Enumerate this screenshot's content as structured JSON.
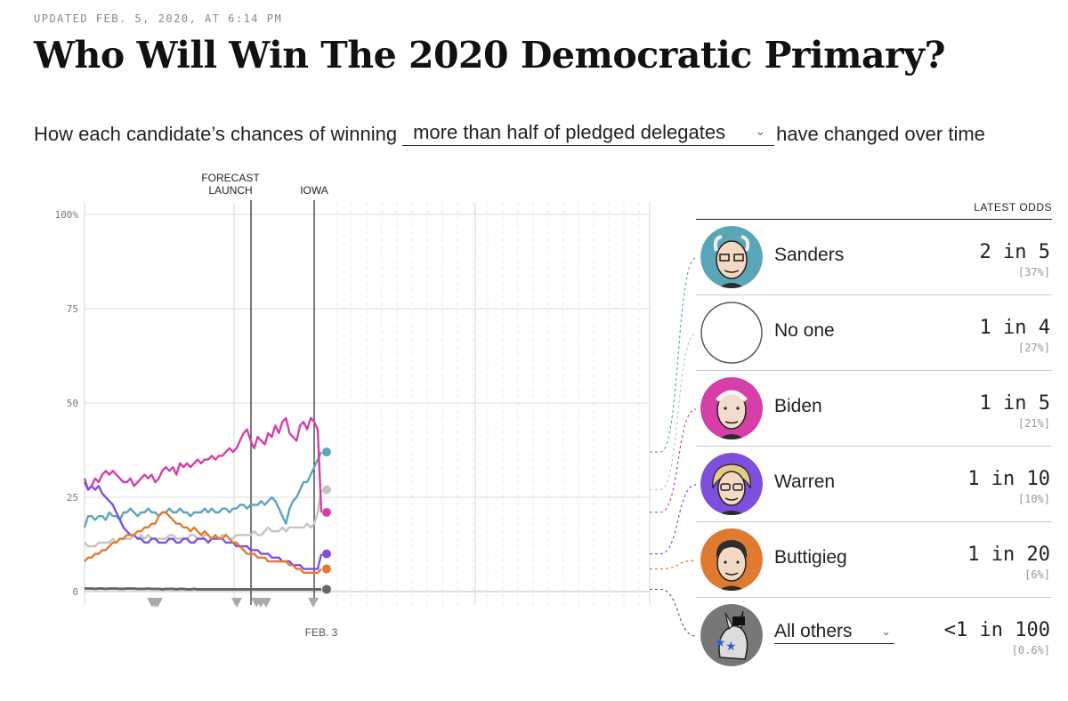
{
  "header": {
    "updated": "UPDATED FEB. 5, 2020, AT 6:14 PM",
    "title": "Who Will Win The 2020 Democratic Primary?",
    "subtitle_before": "How each candidate’s chances of winning",
    "metric_selected": "more than half of pledged delegates",
    "subtitle_after": "have changed over time"
  },
  "odds_panel": {
    "header": "LATEST ODDS",
    "candidates": [
      {
        "name": "Sanders",
        "odds": "2 in 5",
        "pct": "[37%]",
        "color": "#5aa6b8",
        "icon": "sanders-portrait-icon"
      },
      {
        "name": "No one",
        "odds": "1 in 4",
        "pct": "[27%]",
        "color": "#bdbdbd",
        "icon": "empty-circle-icon"
      },
      {
        "name": "Biden",
        "odds": "1 in 5",
        "pct": "[21%]",
        "color": "#d63ea8",
        "icon": "biden-portrait-icon"
      },
      {
        "name": "Warren",
        "odds": "1 in 10",
        "pct": "[10%]",
        "color": "#7e4fdc",
        "icon": "warren-portrait-icon"
      },
      {
        "name": "Buttigieg",
        "odds": "1 in 20",
        "pct": "[6%]",
        "color": "#e07a31",
        "icon": "buttigieg-portrait-icon"
      },
      {
        "name": "All others",
        "odds": "<1 in 100",
        "pct": "[0.6%]",
        "color": "#666666",
        "icon": "donkey-icon"
      }
    ]
  },
  "chart_data": {
    "type": "line",
    "title": "",
    "xlabel": "",
    "ylabel": "",
    "ylim": [
      0,
      100
    ],
    "yticks": [
      0,
      25,
      50,
      75,
      100
    ],
    "ytick_labels": [
      "0",
      "25",
      "50",
      "75",
      "100%"
    ],
    "x_label_text": "FEB. 3",
    "markers": [
      {
        "label_lines": [
          "FORECAST",
          "LAUNCH"
        ],
        "x_index": 47
      },
      {
        "label_lines": [
          "IOWA"
        ],
        "x_index": 65
      }
    ],
    "series": [
      {
        "name": "Sanders",
        "color": "#5aa6b8",
        "values": [
          17,
          20,
          20,
          19,
          20,
          20,
          19,
          21,
          20,
          20,
          19,
          21,
          21,
          22,
          21,
          20,
          21,
          21,
          22,
          21,
          21,
          20,
          21,
          21,
          22,
          21,
          21,
          22,
          21,
          21,
          20,
          21,
          21,
          21,
          22,
          21,
          22,
          21,
          21,
          22,
          22,
          21,
          22,
          22,
          23,
          23,
          22,
          23,
          23,
          23,
          24,
          23,
          24,
          25,
          24,
          22,
          20,
          18,
          22,
          24,
          25,
          27,
          29,
          29,
          31,
          33,
          35,
          37
        ]
      },
      {
        "name": "No one",
        "color": "#c4c4c4",
        "values": [
          13,
          12,
          12,
          12,
          13,
          13,
          13,
          13,
          14,
          13,
          14,
          14,
          14,
          14,
          15,
          14,
          15,
          14,
          15,
          14,
          14,
          14,
          14,
          14,
          15,
          15,
          14,
          14,
          14,
          14,
          15,
          15,
          14,
          14,
          15,
          15,
          14,
          14,
          14,
          15,
          15,
          14,
          14,
          15,
          15,
          15,
          15,
          15,
          16,
          15,
          15,
          16,
          17,
          16,
          16,
          16,
          17,
          16,
          17,
          17,
          17,
          17,
          17,
          18,
          17,
          18,
          21,
          27
        ]
      },
      {
        "name": "Biden",
        "color": "#d63ea8",
        "values": [
          30,
          27,
          28,
          30,
          29,
          31,
          32,
          31,
          32,
          31,
          30,
          29,
          29,
          30,
          28,
          29,
          30,
          31,
          30,
          31,
          29,
          30,
          32,
          33,
          32,
          33,
          31,
          34,
          33,
          34,
          33,
          34,
          35,
          34,
          35,
          35,
          36,
          35,
          36,
          36,
          37,
          38,
          37,
          38,
          40,
          42,
          43,
          40,
          38,
          41,
          40,
          39,
          42,
          41,
          44,
          42,
          45,
          46,
          42,
          41,
          40,
          44,
          45,
          43,
          46,
          45,
          43,
          21
        ]
      },
      {
        "name": "Warren",
        "color": "#7e4fdc",
        "values": [
          29,
          27,
          28,
          27,
          28,
          26,
          25,
          24,
          23,
          21,
          19,
          17,
          16,
          15,
          15,
          14,
          14,
          13,
          13,
          14,
          14,
          13,
          13,
          13,
          14,
          14,
          13,
          13,
          14,
          14,
          13,
          13,
          14,
          14,
          14,
          13,
          14,
          14,
          14,
          14,
          13,
          13,
          13,
          12,
          12,
          12,
          12,
          11,
          11,
          11,
          10,
          10,
          10,
          9,
          9,
          9,
          8,
          8,
          8,
          7,
          7,
          7,
          6,
          6,
          6,
          6,
          6,
          10
        ]
      },
      {
        "name": "Buttigieg",
        "color": "#e07a31",
        "values": [
          8,
          9,
          9,
          10,
          10,
          11,
          11,
          12,
          13,
          13,
          14,
          14,
          15,
          15,
          15,
          16,
          16,
          17,
          17,
          18,
          18,
          20,
          21,
          21,
          20,
          19,
          18,
          18,
          17,
          17,
          16,
          17,
          16,
          15,
          16,
          15,
          14,
          15,
          14,
          14,
          15,
          14,
          13,
          13,
          12,
          11,
          10,
          10,
          10,
          9,
          9,
          9,
          8,
          8,
          8,
          8,
          8,
          8,
          7,
          7,
          6,
          6,
          5,
          5,
          5,
          5,
          5,
          6
        ]
      },
      {
        "name": "All others",
        "color": "#666666",
        "values": [
          0.8,
          0.8,
          0.8,
          0.7,
          0.8,
          0.8,
          0.7,
          0.8,
          0.8,
          0.8,
          0.7,
          0.7,
          0.8,
          0.8,
          0.8,
          0.7,
          0.7,
          0.7,
          0.8,
          0.7,
          0.7,
          0.7,
          0.6,
          0.7,
          0.7,
          0.7,
          0.6,
          0.7,
          0.7,
          0.6,
          0.6,
          0.7,
          0.6,
          0.6,
          0.6,
          0.6,
          0.6,
          0.6,
          0.6,
          0.6,
          0.6,
          0.6,
          0.6,
          0.6,
          0.6,
          0.6,
          0.6,
          0.6,
          0.6,
          0.6,
          0.6,
          0.6,
          0.6,
          0.6,
          0.6,
          0.6,
          0.6,
          0.6,
          0.6,
          0.6,
          0.6,
          0.6,
          0.6,
          0.6,
          0.6,
          0.6,
          0.6,
          0.6
        ]
      }
    ]
  }
}
